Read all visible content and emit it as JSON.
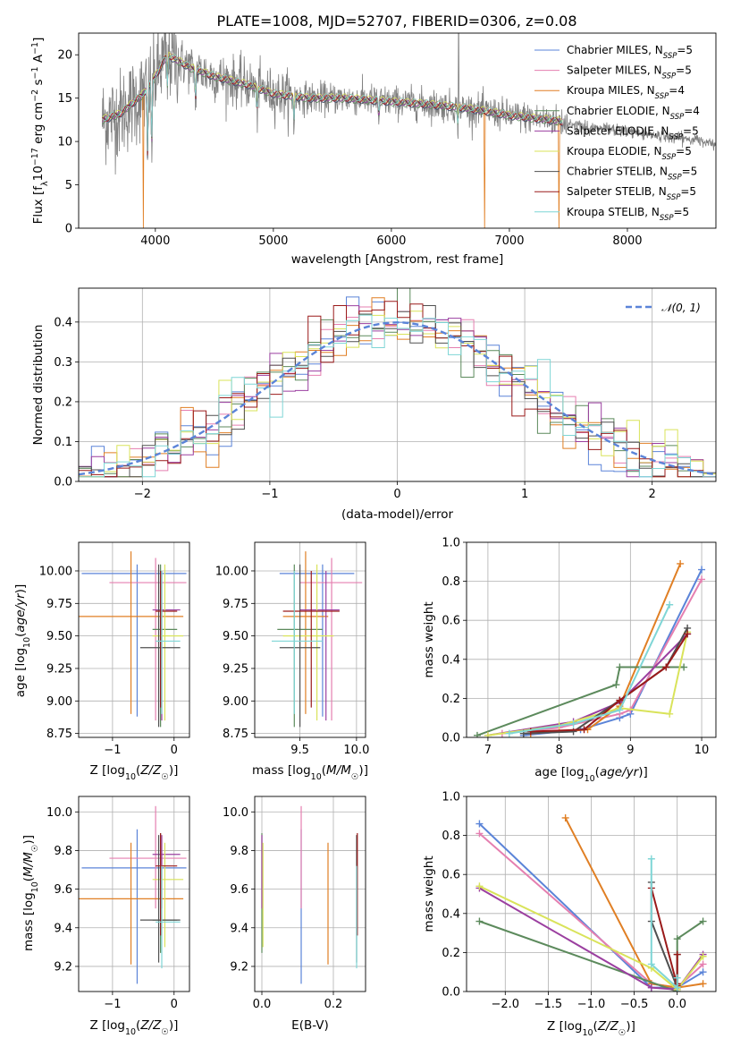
{
  "figure_title": "PLATE=1008, MJD=52707, FIBERID=0306, z=0.08",
  "colors": {
    "chabrier_miles": "#5b84d8",
    "salpeter_miles": "#e57fb0",
    "kroupa_miles": "#e07f24",
    "chabrier_elodie": "#5c8a5c",
    "salpeter_elodie": "#9b3fa0",
    "kroupa_elodie": "#d9e35a",
    "chabrier_stelib": "#505050",
    "salpeter_stelib": "#9a1a1a",
    "kroupa_stelib": "#7fd6d6",
    "data": "#808080",
    "normal": "#5b84d8"
  },
  "chart_data": [
    {
      "id": "spectrum",
      "type": "line",
      "xlabel": "wavelength [Angstrom, rest frame]",
      "ylabel": "Flux [f_λ10^-17 erg cm^-2 s^-1 A^-1]",
      "xlim": [
        3350,
        8750
      ],
      "ylim": [
        0,
        22.5
      ],
      "xticks": [
        4000,
        5000,
        6000,
        7000,
        8000
      ],
      "yticks": [
        0,
        5,
        10,
        15,
        20
      ],
      "legend_position": "upper-right",
      "legend": [
        "Chabrier MILES, N_SSP=5",
        "Salpeter MILES, N_SSP=5",
        "Kroupa MILES, N_SSP=4",
        "Chabrier ELODIE, N_SSP=4",
        "Salpeter ELODIE, N_SSP=5",
        "Kroupa ELODIE, N_SSP=5",
        "Chabrier STELIB, N_SSP=5",
        "Salpeter STELIB, N_SSP=5",
        "Kroupa STELIB, N_SSP=5"
      ],
      "continuum": [
        [
          3550,
          12.5
        ],
        [
          3700,
          13.2
        ],
        [
          3900,
          15.5
        ],
        [
          4000,
          17.5
        ],
        [
          4100,
          20.0
        ],
        [
          4300,
          18.5
        ],
        [
          4500,
          17.5
        ],
        [
          4800,
          16.5
        ],
        [
          5000,
          15.5
        ],
        [
          5300,
          15.0
        ],
        [
          5600,
          15.0
        ],
        [
          6000,
          14.6
        ],
        [
          6300,
          14.3
        ],
        [
          6600,
          13.9
        ],
        [
          6800,
          13.5
        ],
        [
          7000,
          13.0
        ],
        [
          7200,
          12.7
        ],
        [
          7400,
          12.4
        ],
        [
          7700,
          11.5
        ],
        [
          8000,
          11.2
        ],
        [
          8300,
          10.6
        ],
        [
          8750,
          9.9
        ]
      ],
      "model_range": [
        3550,
        7450
      ],
      "drops": [
        {
          "x": 3900,
          "series": "kroupa_miles"
        },
        {
          "x": 6790,
          "series": "kroupa_miles"
        },
        {
          "x": 7420,
          "series": "kroupa_miles"
        }
      ],
      "spike": {
        "x": 6570,
        "y": 22.5
      }
    },
    {
      "id": "residuals",
      "type": "line",
      "xlabel": "(data-model)/error",
      "ylabel": "Normed distribution",
      "xlim": [
        -2.5,
        2.5
      ],
      "ylim": [
        0,
        0.485
      ],
      "xticks": [
        -2,
        -1,
        0,
        1,
        2
      ],
      "yticks": [
        0.0,
        0.1,
        0.2,
        0.3,
        0.4
      ],
      "legend": [
        "𝒩(0, 1)"
      ],
      "legend_position": "upper-right",
      "bin_width": 0.1
    },
    {
      "id": "age_vs_Z",
      "type": "scatter",
      "xlabel": "Z [log10(Z/Z⊙)]",
      "ylabel": "age  [log10(age/yr)]",
      "xlim": [
        -1.55,
        0.25
      ],
      "ylim": [
        8.72,
        10.22
      ],
      "xticks": [
        -1,
        0
      ],
      "yticks": [
        8.75,
        9.0,
        9.25,
        9.5,
        9.75,
        10.0
      ],
      "points": [
        {
          "s": "chabrier_miles",
          "x": -0.6,
          "y": 9.98,
          "xe": [
            -1.5,
            0.2
          ],
          "ye": [
            8.88,
            10.05
          ]
        },
        {
          "s": "salpeter_miles",
          "x": -0.3,
          "y": 9.91,
          "xe": [
            -1.05,
            0.2
          ],
          "ye": [
            8.85,
            10.1
          ]
        },
        {
          "s": "kroupa_miles",
          "x": -0.7,
          "y": 9.65,
          "xe": [
            -1.55,
            0.15
          ],
          "ye": [
            8.9,
            10.15
          ]
        },
        {
          "s": "chabrier_elodie",
          "x": -0.22,
          "y": 9.55,
          "xe": [
            -0.35,
            0.05
          ],
          "ye": [
            8.8,
            10.05
          ]
        },
        {
          "s": "salpeter_elodie",
          "x": -0.2,
          "y": 9.7,
          "xe": [
            -0.35,
            0.1
          ],
          "ye": [
            8.85,
            10.0
          ]
        },
        {
          "s": "kroupa_elodie",
          "x": -0.15,
          "y": 9.5,
          "xe": [
            -0.35,
            0.15
          ],
          "ye": [
            8.85,
            10.05
          ]
        },
        {
          "s": "chabrier_stelib",
          "x": -0.25,
          "y": 9.41,
          "xe": [
            -0.55,
            0.1
          ],
          "ye": [
            8.8,
            10.05
          ]
        },
        {
          "s": "salpeter_stelib",
          "x": -0.22,
          "y": 9.69,
          "xe": [
            -0.3,
            0.05
          ],
          "ye": [
            8.95,
            10.0
          ]
        },
        {
          "s": "kroupa_stelib",
          "x": -0.2,
          "y": 9.46,
          "xe": [
            -0.3,
            0.1
          ],
          "ye": [
            8.9,
            10.0
          ]
        }
      ]
    },
    {
      "id": "age_vs_mass",
      "type": "scatter",
      "xlabel": "mass [log10(M/M⊙)]",
      "ylabel": "",
      "xlim": [
        9.1,
        10.08
      ],
      "ylim": [
        8.72,
        10.22
      ],
      "xticks": [
        9.5,
        10.0
      ],
      "yticks": [
        8.75,
        9.0,
        9.25,
        9.5,
        9.75,
        10.0
      ],
      "points": [
        {
          "s": "chabrier_miles",
          "x": 9.7,
          "y": 9.98,
          "xe": [
            9.32,
            9.98
          ],
          "ye": [
            8.88,
            10.05
          ]
        },
        {
          "s": "salpeter_miles",
          "x": 9.78,
          "y": 9.91,
          "xe": [
            9.5,
            10.05
          ],
          "ye": [
            8.85,
            10.1
          ]
        },
        {
          "s": "kroupa_miles",
          "x": 9.55,
          "y": 9.65,
          "xe": [
            9.35,
            9.75
          ],
          "ye": [
            8.9,
            10.15
          ]
        },
        {
          "s": "chabrier_elodie",
          "x": 9.45,
          "y": 9.55,
          "xe": [
            9.3,
            9.7
          ],
          "ye": [
            8.8,
            10.05
          ]
        },
        {
          "s": "salpeter_elodie",
          "x": 9.73,
          "y": 9.7,
          "xe": [
            9.5,
            9.85
          ],
          "ye": [
            8.85,
            10.0
          ]
        },
        {
          "s": "kroupa_elodie",
          "x": 9.65,
          "y": 9.5,
          "xe": [
            9.35,
            9.8
          ],
          "ye": [
            8.85,
            10.05
          ]
        },
        {
          "s": "chabrier_stelib",
          "x": 9.5,
          "y": 9.41,
          "xe": [
            9.32,
            9.68
          ],
          "ye": [
            8.8,
            10.05
          ]
        },
        {
          "s": "salpeter_stelib",
          "x": 9.6,
          "y": 9.69,
          "xe": [
            9.35,
            9.85
          ],
          "ye": [
            8.95,
            10.0
          ]
        },
        {
          "s": "kroupa_stelib",
          "x": 9.45,
          "y": 9.46,
          "xe": [
            9.25,
            9.7
          ],
          "ye": [
            8.9,
            10.0
          ]
        }
      ]
    },
    {
      "id": "weight_vs_age",
      "type": "line",
      "xlabel": "age  [log10(age/yr)]",
      "ylabel": "mass weight",
      "xlim": [
        6.7,
        10.2
      ],
      "ylim": [
        0,
        1.0
      ],
      "xticks": [
        7,
        8,
        9,
        10
      ],
      "yticks": [
        0.0,
        0.2,
        0.4,
        0.6,
        0.8,
        1.0
      ],
      "series": [
        {
          "s": "chabrier_miles",
          "x": [
            7.5,
            8.3,
            8.85,
            9.0,
            10.0
          ],
          "y": [
            0.01,
            0.04,
            0.1,
            0.12,
            0.86
          ]
        },
        {
          "s": "salpeter_miles",
          "x": [
            7.2,
            8.0,
            8.85,
            9.0,
            10.0
          ],
          "y": [
            0.02,
            0.05,
            0.12,
            0.14,
            0.81
          ]
        },
        {
          "s": "kroupa_miles",
          "x": [
            7.6,
            8.4,
            8.85,
            9.7
          ],
          "y": [
            0.02,
            0.04,
            0.16,
            0.89
          ]
        },
        {
          "s": "chabrier_elodie",
          "x": [
            6.85,
            8.8,
            8.85,
            9.75
          ],
          "y": [
            0.01,
            0.27,
            0.36,
            0.36
          ]
        },
        {
          "s": "salpeter_elodie",
          "x": [
            7.0,
            8.2,
            8.85,
            9.8
          ],
          "y": [
            0.01,
            0.08,
            0.18,
            0.53
          ]
        },
        {
          "s": "kroupa_elodie",
          "x": [
            7.0,
            8.0,
            8.85,
            9.55,
            9.8
          ],
          "y": [
            0.01,
            0.06,
            0.15,
            0.12,
            0.54
          ]
        },
        {
          "s": "chabrier_stelib",
          "x": [
            7.5,
            8.2,
            8.85,
            9.5,
            9.8
          ],
          "y": [
            0.02,
            0.03,
            0.19,
            0.36,
            0.56
          ]
        },
        {
          "s": "salpeter_stelib",
          "x": [
            7.6,
            8.35,
            8.85,
            9.5,
            9.8
          ],
          "y": [
            0.03,
            0.04,
            0.19,
            0.36,
            0.53
          ]
        },
        {
          "s": "kroupa_stelib",
          "x": [
            7.3,
            8.2,
            8.85,
            9.55
          ],
          "y": [
            0.02,
            0.07,
            0.14,
            0.68
          ]
        }
      ]
    },
    {
      "id": "mass_vs_Z",
      "type": "scatter",
      "xlabel": "Z [log10(Z/Z⊙)]",
      "ylabel": "mass [log10(M/M⊙)]",
      "xlim": [
        -1.55,
        0.25
      ],
      "ylim": [
        9.07,
        10.08
      ],
      "xticks": [
        -1,
        0
      ],
      "yticks": [
        9.2,
        9.4,
        9.6,
        9.8,
        10.0
      ],
      "points": [
        {
          "s": "chabrier_miles",
          "x": -0.6,
          "y": 9.71,
          "xe": [
            -1.5,
            0.2
          ],
          "ye": [
            9.11,
            9.91
          ]
        },
        {
          "s": "salpeter_miles",
          "x": -0.3,
          "y": 9.76,
          "xe": [
            -1.05,
            0.2
          ],
          "ye": [
            9.5,
            10.03
          ]
        },
        {
          "s": "kroupa_miles",
          "x": -0.7,
          "y": 9.55,
          "xe": [
            -1.55,
            0.15
          ],
          "ye": [
            9.21,
            9.84
          ]
        },
        {
          "s": "chabrier_elodie",
          "x": -0.22,
          "y": 9.44,
          "xe": [
            -0.35,
            0.05
          ],
          "ye": [
            9.27,
            9.89
          ]
        },
        {
          "s": "salpeter_elodie",
          "x": -0.2,
          "y": 9.78,
          "xe": [
            -0.35,
            0.1
          ],
          "ye": [
            9.5,
            9.88
          ]
        },
        {
          "s": "kroupa_elodie",
          "x": -0.15,
          "y": 9.65,
          "xe": [
            -0.35,
            0.15
          ],
          "ye": [
            9.3,
            9.84
          ]
        },
        {
          "s": "chabrier_stelib",
          "x": -0.25,
          "y": 9.44,
          "xe": [
            -0.55,
            0.1
          ],
          "ye": [
            9.22,
            9.88
          ]
        },
        {
          "s": "salpeter_stelib",
          "x": -0.22,
          "y": 9.72,
          "xe": [
            -0.3,
            0.05
          ],
          "ye": [
            9.36,
            9.89
          ]
        },
        {
          "s": "kroupa_stelib",
          "x": -0.2,
          "y": 9.43,
          "xe": [
            -0.3,
            0.1
          ],
          "ye": [
            9.19,
            9.72
          ]
        }
      ]
    },
    {
      "id": "mass_vs_ebv",
      "type": "scatter",
      "xlabel": "E(B-V)",
      "ylabel": "",
      "xlim": [
        -0.02,
        0.29
      ],
      "ylim": [
        9.07,
        10.08
      ],
      "xticks": [
        0.0,
        0.2
      ],
      "yticks": [
        9.2,
        9.4,
        9.6,
        9.8,
        10.0
      ],
      "points": [
        {
          "s": "chabrier_miles",
          "x": 0.11,
          "y": 9.71,
          "ye": [
            9.11,
            9.91
          ]
        },
        {
          "s": "salpeter_miles",
          "x": 0.11,
          "y": 9.76,
          "ye": [
            9.5,
            10.03
          ]
        },
        {
          "s": "kroupa_miles",
          "x": 0.185,
          "y": 9.55,
          "ye": [
            9.21,
            9.84
          ]
        },
        {
          "s": "chabrier_elodie",
          "x": 0.0,
          "y": 9.44,
          "ye": [
            9.27,
            9.89
          ]
        },
        {
          "s": "salpeter_elodie",
          "x": 0.0,
          "y": 9.78,
          "ye": [
            9.5,
            9.88
          ]
        },
        {
          "s": "kroupa_elodie",
          "x": 0.003,
          "y": 9.65,
          "ye": [
            9.3,
            9.84
          ]
        },
        {
          "s": "chabrier_stelib",
          "x": 0.265,
          "y": 9.44,
          "ye": [
            9.22,
            9.88
          ]
        },
        {
          "s": "salpeter_stelib",
          "x": 0.267,
          "y": 9.72,
          "ye": [
            9.36,
            9.89
          ]
        },
        {
          "s": "kroupa_stelib",
          "x": 0.265,
          "y": 9.43,
          "ye": [
            9.19,
            9.72
          ]
        }
      ]
    },
    {
      "id": "weight_vs_Z",
      "type": "line",
      "xlabel": "Z [log10(Z/Z⊙)]",
      "ylabel": "mass weight",
      "xlim": [
        -2.45,
        0.45
      ],
      "ylim": [
        0,
        1.0
      ],
      "xticks": [
        -2.0,
        -1.5,
        -1.0,
        -0.5,
        0.0
      ],
      "yticks": [
        0.0,
        0.2,
        0.4,
        0.6,
        0.8,
        1.0
      ],
      "series": [
        {
          "s": "chabrier_miles",
          "x": [
            -2.3,
            -0.3,
            0.0,
            0.3
          ],
          "y": [
            0.86,
            0.02,
            0.02,
            0.1
          ]
        },
        {
          "s": "salpeter_miles",
          "x": [
            -2.3,
            -0.3,
            0.0,
            0.3
          ],
          "y": [
            0.81,
            0.04,
            0.02,
            0.14
          ]
        },
        {
          "s": "kroupa_miles",
          "x": [
            -1.3,
            -0.3,
            0.0,
            0.3
          ],
          "y": [
            0.89,
            0.04,
            0.02,
            0.04
          ]
        },
        {
          "s": "chabrier_elodie",
          "x": [
            -2.3,
            0.0,
            0.0,
            0.3
          ],
          "y": [
            0.36,
            0.0,
            0.27,
            0.36
          ]
        },
        {
          "s": "salpeter_elodie",
          "x": [
            -2.3,
            -0.3,
            0.0,
            0.3
          ],
          "y": [
            0.53,
            0.02,
            0.01,
            0.19
          ]
        },
        {
          "s": "kroupa_elodie",
          "x": [
            -2.3,
            -0.3,
            0.0,
            0.3
          ],
          "y": [
            0.54,
            0.12,
            0.01,
            0.18
          ]
        },
        {
          "s": "chabrier_stelib",
          "x": [
            -0.3,
            -0.3,
            0.0,
            0.0
          ],
          "y": [
            0.56,
            0.36,
            0.02,
            0.19
          ]
        },
        {
          "s": "salpeter_stelib",
          "x": [
            -0.3,
            0.0,
            0.0,
            0.0
          ],
          "y": [
            0.53,
            0.03,
            0.04,
            0.19
          ]
        },
        {
          "s": "kroupa_stelib",
          "x": [
            -0.3,
            -0.3,
            0.0,
            0.0
          ],
          "y": [
            0.68,
            0.14,
            0.02,
            0.07
          ]
        }
      ]
    }
  ]
}
